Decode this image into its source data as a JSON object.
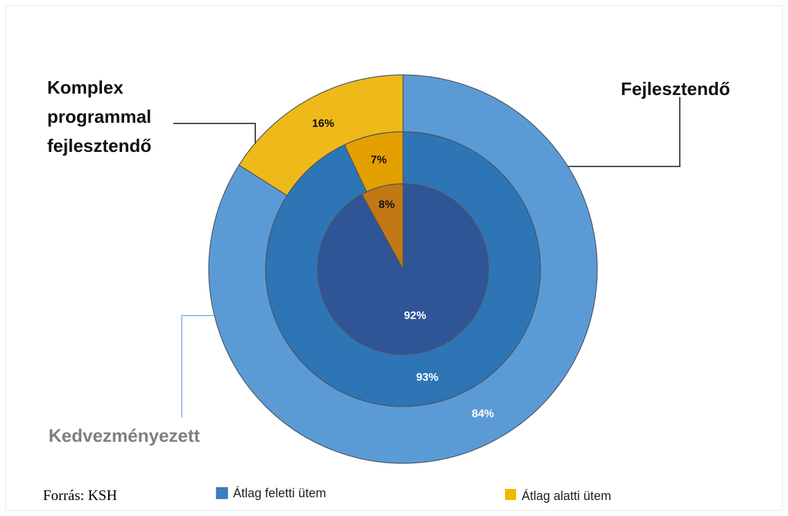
{
  "chart_data": {
    "type": "nested-donut",
    "categories": [
      "Átlag feletti ütem",
      "Átlag alatti ütem"
    ],
    "colors": [
      "#3b7dc4",
      "#f5b800"
    ],
    "series": [
      {
        "name": "Kedvezményezett",
        "values": [
          84,
          16
        ],
        "value_labels": [
          "84%",
          "16%"
        ],
        "colors": [
          "#5b9bd5",
          "#f0b91a"
        ]
      },
      {
        "name": "Fejlesztendő",
        "values": [
          93,
          7
        ],
        "value_labels": [
          "93%",
          "7%"
        ],
        "colors": [
          "#2e75b6",
          "#e3a000"
        ]
      },
      {
        "name": "Komplex programmal fejlesztendő",
        "values": [
          92,
          8
        ],
        "value_labels": [
          "92%",
          "8%"
        ],
        "colors": [
          "#2f5597",
          "#c27814"
        ]
      }
    ],
    "source": "Forrás: KSH"
  }
}
